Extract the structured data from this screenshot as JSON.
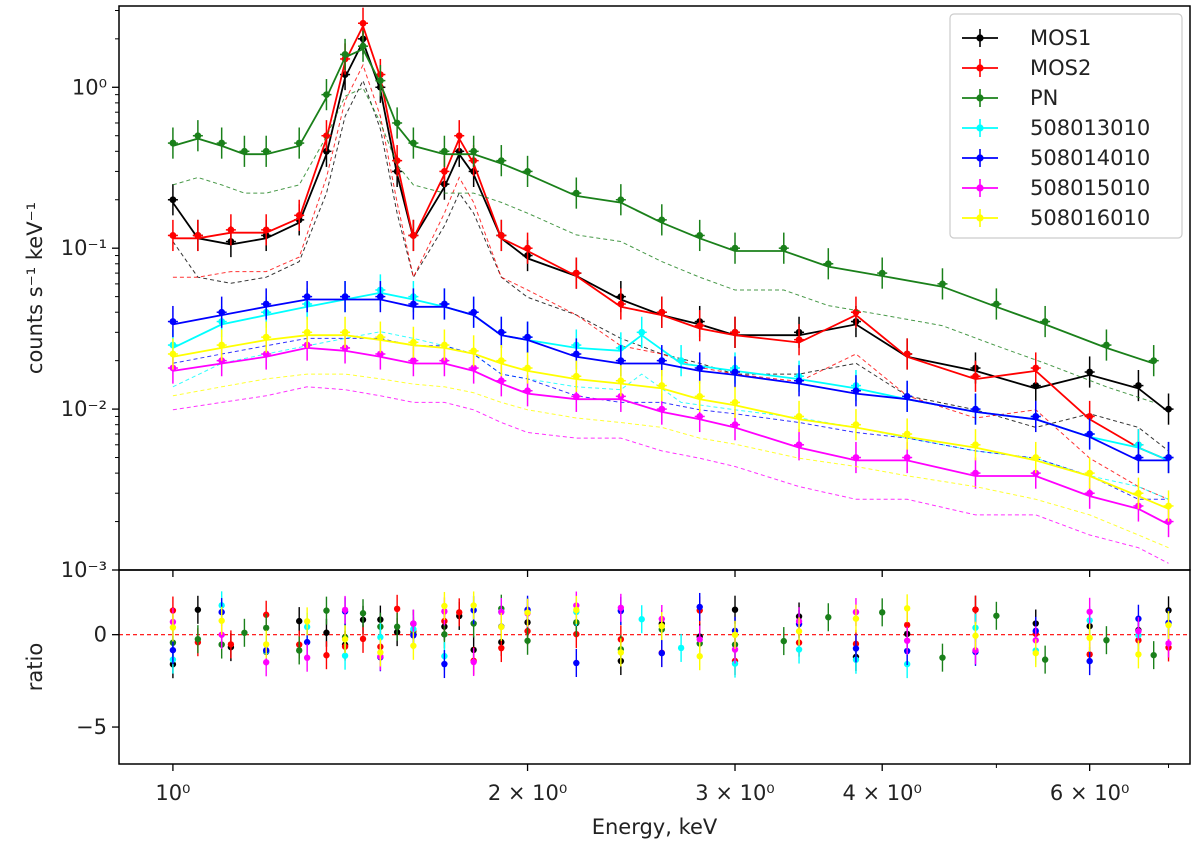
{
  "chart_data": [
    {
      "type": "scatter",
      "panel": "spectrum",
      "xlabel": "",
      "ylabel": "counts s⁻¹ keV⁻¹",
      "xscale": "log",
      "yscale": "log",
      "xlim": [
        0.9,
        7.3
      ],
      "ylim": [
        0.001,
        3.2
      ],
      "yticks": [
        {
          "value": 1,
          "label": "10⁰"
        },
        {
          "value": 0.1,
          "label": "10⁻¹"
        },
        {
          "value": 0.01,
          "label": "10⁻²"
        },
        {
          "value": 0.001,
          "label": "10⁻³"
        }
      ],
      "legend_position": "top-right",
      "series": [
        {
          "name": "MOS1",
          "color": "#000000",
          "points": [
            [
              1.0,
              0.2
            ],
            [
              1.05,
              0.12
            ],
            [
              1.12,
              0.11
            ],
            [
              1.2,
              0.12
            ],
            [
              1.28,
              0.15
            ],
            [
              1.35,
              0.4
            ],
            [
              1.4,
              1.2
            ],
            [
              1.45,
              2.0
            ],
            [
              1.5,
              1.0
            ],
            [
              1.55,
              0.3
            ],
            [
              1.6,
              0.12
            ],
            [
              1.7,
              0.25
            ],
            [
              1.75,
              0.4
            ],
            [
              1.8,
              0.3
            ],
            [
              1.9,
              0.12
            ],
            [
              2.0,
              0.09
            ],
            [
              2.2,
              0.07
            ],
            [
              2.4,
              0.05
            ],
            [
              2.6,
              0.04
            ],
            [
              2.8,
              0.035
            ],
            [
              3.0,
              0.03
            ],
            [
              3.4,
              0.03
            ],
            [
              3.8,
              0.035
            ],
            [
              4.2,
              0.022
            ],
            [
              4.8,
              0.018
            ],
            [
              5.4,
              0.014
            ],
            [
              6.0,
              0.017
            ],
            [
              6.6,
              0.014
            ],
            [
              7.0,
              0.01
            ]
          ]
        },
        {
          "name": "MOS2",
          "color": "#ff0000",
          "points": [
            [
              1.0,
              0.12
            ],
            [
              1.05,
              0.12
            ],
            [
              1.12,
              0.13
            ],
            [
              1.2,
              0.13
            ],
            [
              1.28,
              0.16
            ],
            [
              1.35,
              0.5
            ],
            [
              1.4,
              1.5
            ],
            [
              1.45,
              2.5
            ],
            [
              1.5,
              1.2
            ],
            [
              1.55,
              0.35
            ],
            [
              1.6,
              0.12
            ],
            [
              1.7,
              0.3
            ],
            [
              1.75,
              0.5
            ],
            [
              1.8,
              0.35
            ],
            [
              1.9,
              0.12
            ],
            [
              2.0,
              0.1
            ],
            [
              2.2,
              0.07
            ],
            [
              2.4,
              0.045
            ],
            [
              2.6,
              0.04
            ],
            [
              2.8,
              0.033
            ],
            [
              3.0,
              0.03
            ],
            [
              3.4,
              0.027
            ],
            [
              3.8,
              0.04
            ],
            [
              4.2,
              0.022
            ],
            [
              4.8,
              0.016
            ],
            [
              5.4,
              0.018
            ],
            [
              6.0,
              0.009
            ],
            [
              6.6,
              0.006
            ],
            [
              7.0,
              0.005
            ]
          ]
        },
        {
          "name": "PN",
          "color": "#1a801a",
          "points": [
            [
              1.0,
              0.45
            ],
            [
              1.05,
              0.5
            ],
            [
              1.1,
              0.45
            ],
            [
              1.15,
              0.4
            ],
            [
              1.2,
              0.4
            ],
            [
              1.28,
              0.45
            ],
            [
              1.35,
              0.9
            ],
            [
              1.4,
              1.6
            ],
            [
              1.45,
              1.8
            ],
            [
              1.5,
              1.1
            ],
            [
              1.55,
              0.6
            ],
            [
              1.6,
              0.45
            ],
            [
              1.7,
              0.4
            ],
            [
              1.8,
              0.4
            ],
            [
              1.9,
              0.35
            ],
            [
              2.0,
              0.3
            ],
            [
              2.2,
              0.22
            ],
            [
              2.4,
              0.2
            ],
            [
              2.6,
              0.15
            ],
            [
              2.8,
              0.12
            ],
            [
              3.0,
              0.1
            ],
            [
              3.3,
              0.1
            ],
            [
              3.6,
              0.08
            ],
            [
              4.0,
              0.07
            ],
            [
              4.5,
              0.06
            ],
            [
              5.0,
              0.045
            ],
            [
              5.5,
              0.035
            ],
            [
              6.2,
              0.025
            ],
            [
              6.8,
              0.02
            ]
          ]
        },
        {
          "name": "508013010",
          "color": "#00ffff",
          "points": [
            [
              1.0,
              0.025
            ],
            [
              1.1,
              0.035
            ],
            [
              1.2,
              0.04
            ],
            [
              1.3,
              0.045
            ],
            [
              1.4,
              0.05
            ],
            [
              1.5,
              0.055
            ],
            [
              1.6,
              0.05
            ],
            [
              1.7,
              0.045
            ],
            [
              1.8,
              0.04
            ],
            [
              1.9,
              0.03
            ],
            [
              2.0,
              0.028
            ],
            [
              2.2,
              0.025
            ],
            [
              2.4,
              0.024
            ],
            [
              2.5,
              0.03
            ],
            [
              2.7,
              0.02
            ],
            [
              3.0,
              0.018
            ],
            [
              3.4,
              0.016
            ],
            [
              3.8,
              0.014
            ],
            [
              4.2,
              0.012
            ],
            [
              4.8,
              0.01
            ],
            [
              5.4,
              0.009
            ],
            [
              6.0,
              0.007
            ],
            [
              6.6,
              0.006
            ],
            [
              7.0,
              0.005
            ]
          ]
        },
        {
          "name": "508014010",
          "color": "#0000ff",
          "points": [
            [
              1.0,
              0.035
            ],
            [
              1.1,
              0.04
            ],
            [
              1.2,
              0.045
            ],
            [
              1.3,
              0.05
            ],
            [
              1.4,
              0.05
            ],
            [
              1.5,
              0.05
            ],
            [
              1.6,
              0.045
            ],
            [
              1.7,
              0.045
            ],
            [
              1.8,
              0.04
            ],
            [
              1.9,
              0.03
            ],
            [
              2.0,
              0.028
            ],
            [
              2.2,
              0.022
            ],
            [
              2.4,
              0.02
            ],
            [
              2.6,
              0.02
            ],
            [
              2.8,
              0.018
            ],
            [
              3.0,
              0.017
            ],
            [
              3.4,
              0.015
            ],
            [
              3.8,
              0.013
            ],
            [
              4.2,
              0.012
            ],
            [
              4.8,
              0.01
            ],
            [
              5.4,
              0.009
            ],
            [
              6.0,
              0.007
            ],
            [
              6.6,
              0.005
            ],
            [
              7.0,
              0.005
            ]
          ]
        },
        {
          "name": "508015010",
          "color": "#ff00ff",
          "points": [
            [
              1.0,
              0.018
            ],
            [
              1.1,
              0.02
            ],
            [
              1.2,
              0.022
            ],
            [
              1.3,
              0.025
            ],
            [
              1.4,
              0.024
            ],
            [
              1.5,
              0.022
            ],
            [
              1.6,
              0.02
            ],
            [
              1.7,
              0.02
            ],
            [
              1.8,
              0.018
            ],
            [
              1.9,
              0.015
            ],
            [
              2.0,
              0.013
            ],
            [
              2.2,
              0.012
            ],
            [
              2.4,
              0.012
            ],
            [
              2.6,
              0.01
            ],
            [
              2.8,
              0.009
            ],
            [
              3.0,
              0.008
            ],
            [
              3.4,
              0.006
            ],
            [
              3.8,
              0.005
            ],
            [
              4.2,
              0.005
            ],
            [
              4.8,
              0.004
            ],
            [
              5.4,
              0.004
            ],
            [
              6.0,
              0.003
            ],
            [
              6.6,
              0.0025
            ],
            [
              7.0,
              0.002
            ]
          ]
        },
        {
          "name": "508016010",
          "color": "#ffff00",
          "points": [
            [
              1.0,
              0.022
            ],
            [
              1.1,
              0.025
            ],
            [
              1.2,
              0.028
            ],
            [
              1.3,
              0.03
            ],
            [
              1.4,
              0.03
            ],
            [
              1.5,
              0.028
            ],
            [
              1.6,
              0.026
            ],
            [
              1.7,
              0.025
            ],
            [
              1.8,
              0.023
            ],
            [
              1.9,
              0.02
            ],
            [
              2.0,
              0.018
            ],
            [
              2.2,
              0.016
            ],
            [
              2.4,
              0.015
            ],
            [
              2.6,
              0.014
            ],
            [
              2.8,
              0.012
            ],
            [
              3.0,
              0.011
            ],
            [
              3.4,
              0.009
            ],
            [
              3.8,
              0.008
            ],
            [
              4.2,
              0.007
            ],
            [
              4.8,
              0.006
            ],
            [
              5.4,
              0.005
            ],
            [
              6.0,
              0.004
            ],
            [
              6.6,
              0.003
            ],
            [
              7.0,
              0.0025
            ]
          ]
        }
      ]
    },
    {
      "type": "scatter",
      "panel": "residuals",
      "xlabel": "Energy, keV",
      "ylabel": "ratio",
      "xscale": "log",
      "xlim": [
        0.9,
        7.3
      ],
      "ylim": [
        -7.0,
        3.5
      ],
      "xticks": [
        {
          "value": 1,
          "label": "10⁰"
        },
        {
          "value": 2,
          "label": "2 × 10⁰"
        },
        {
          "value": 3,
          "label": "3 × 10⁰"
        },
        {
          "value": 4,
          "label": "4 × 10⁰"
        },
        {
          "value": 6,
          "label": "6 × 10⁰"
        }
      ],
      "yticks": [
        {
          "value": 0,
          "label": "0"
        },
        {
          "value": -5,
          "label": "−5"
        }
      ],
      "reference_line": {
        "y": 0,
        "color": "#ff0000",
        "style": "dashed"
      }
    }
  ]
}
